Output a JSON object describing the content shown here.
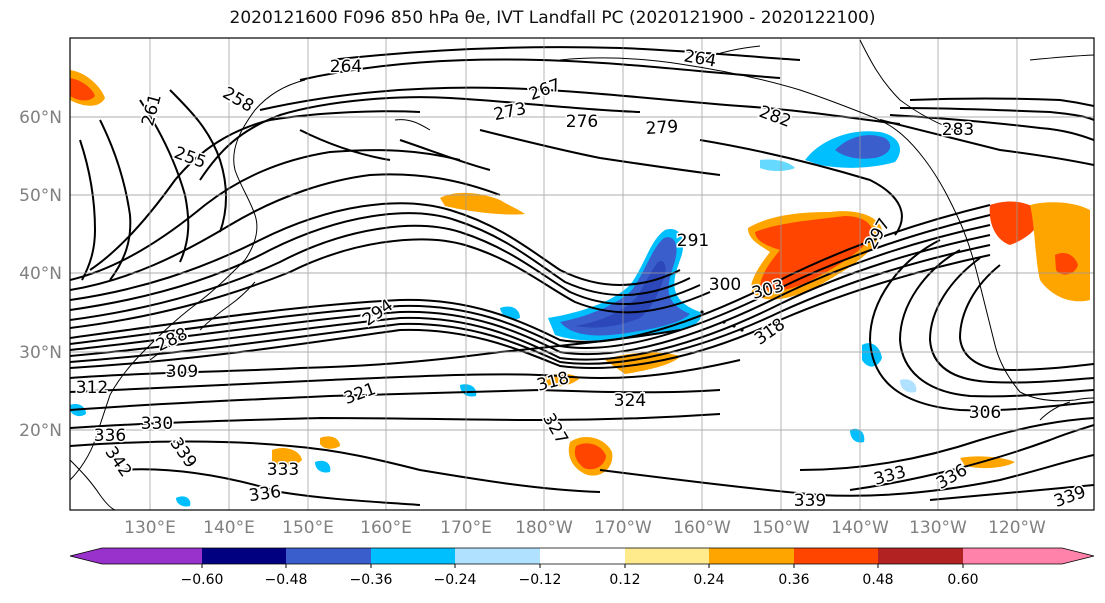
{
  "title": "2020121600 F096 850 hPa θe, IVT Landfall PC (2020121900 - 2020122100)",
  "lat_labels": [
    "60°N",
    "50°N",
    "40°N",
    "30°N",
    "20°N"
  ],
  "lon_labels": [
    "130°E",
    "140°E",
    "150°E",
    "160°E",
    "170°E",
    "180°W",
    "170°W",
    "160°W",
    "150°W",
    "140°W",
    "130°W",
    "120°W"
  ],
  "contour_labels": [
    {
      "text": "264"
    },
    {
      "text": "264"
    },
    {
      "text": "267"
    },
    {
      "text": "261"
    },
    {
      "text": "258"
    },
    {
      "text": "255"
    },
    {
      "text": "273"
    },
    {
      "text": "276"
    },
    {
      "text": "279"
    },
    {
      "text": "282"
    },
    {
      "text": "283"
    },
    {
      "text": "291"
    },
    {
      "text": "297"
    },
    {
      "text": "300"
    },
    {
      "text": "303"
    },
    {
      "text": "294"
    },
    {
      "text": "288"
    },
    {
      "text": "309"
    },
    {
      "text": "312"
    },
    {
      "text": "318"
    },
    {
      "text": "318"
    },
    {
      "text": "321"
    },
    {
      "text": "324"
    },
    {
      "text": "327"
    },
    {
      "text": "330"
    },
    {
      "text": "336"
    },
    {
      "text": "339"
    },
    {
      "text": "342"
    },
    {
      "text": "333"
    },
    {
      "text": "336"
    },
    {
      "text": "339"
    },
    {
      "text": "333"
    },
    {
      "text": "336"
    },
    {
      "text": "306"
    },
    {
      "text": "339"
    }
  ],
  "colorbar": {
    "colors": [
      "#9932cc",
      "#000080",
      "#3a5fcd",
      "#00bfff",
      "#b0e2ff",
      "#ffffff",
      "#ffeb8c",
      "#ffa500",
      "#ff4500",
      "#b22222",
      "#ff82ab"
    ],
    "ticks": [
      "−0.60",
      "−0.48",
      "−0.36",
      "−0.24",
      "−0.12",
      "0.12",
      "0.24",
      "0.36",
      "0.48",
      "0.60"
    ]
  }
}
